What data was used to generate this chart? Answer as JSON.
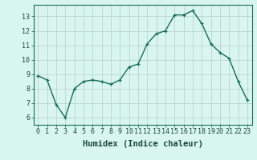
{
  "x": [
    0,
    1,
    2,
    3,
    4,
    5,
    6,
    7,
    8,
    9,
    10,
    11,
    12,
    13,
    14,
    15,
    16,
    17,
    18,
    19,
    20,
    21,
    22,
    23
  ],
  "y": [
    8.9,
    8.6,
    6.9,
    6.0,
    8.0,
    8.5,
    8.6,
    8.5,
    8.3,
    8.6,
    9.5,
    9.7,
    11.1,
    11.8,
    12.0,
    13.1,
    13.1,
    13.4,
    12.5,
    11.1,
    10.5,
    10.1,
    8.5,
    7.2
  ],
  "line_color": "#1a6b5a",
  "marker": "+",
  "markersize": 3.5,
  "linewidth": 1.0,
  "background_color": "#d8f5f0",
  "grid_color": "#b8ceca",
  "xlabel": "Humidex (Indice chaleur)",
  "xlim": [
    -0.5,
    23.5
  ],
  "ylim": [
    5.5,
    13.8
  ],
  "yticks": [
    6,
    7,
    8,
    9,
    10,
    11,
    12,
    13
  ],
  "xticks": [
    0,
    1,
    2,
    3,
    4,
    5,
    6,
    7,
    8,
    9,
    10,
    11,
    12,
    13,
    14,
    15,
    16,
    17,
    18,
    19,
    20,
    21,
    22,
    23
  ],
  "tick_fontsize": 6,
  "xlabel_fontsize": 7.5,
  "fig_bg": "#d8f5f0"
}
